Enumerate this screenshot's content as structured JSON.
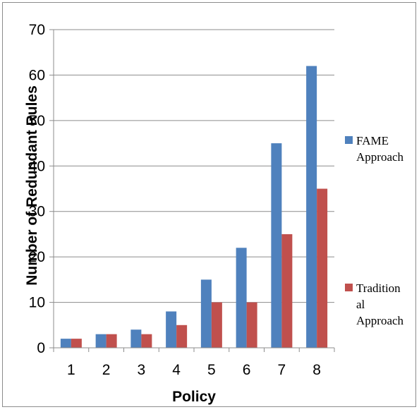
{
  "chart_data": {
    "type": "bar",
    "categories": [
      "1",
      "2",
      "3",
      "4",
      "5",
      "6",
      "7",
      "8"
    ],
    "series": [
      {
        "name": "FAME Approach",
        "color": "#4f81bd",
        "values": [
          2,
          3,
          4,
          8,
          15,
          22,
          45,
          62
        ]
      },
      {
        "name": "Traditional Approach",
        "color": "#c0504d",
        "values": [
          2,
          3,
          3,
          5,
          10,
          10,
          25,
          35
        ]
      }
    ],
    "legend_lines": [
      [
        "FAME",
        "Approach"
      ],
      [
        "Tradition",
        "al",
        "Approach"
      ]
    ],
    "title": "",
    "xlabel": "Policy",
    "ylabel": "Number of Redundant Rules",
    "ylim": [
      0,
      70
    ],
    "yticks": [
      "0",
      "10",
      "20",
      "30",
      "40",
      "50",
      "60",
      "70"
    ],
    "grid": true,
    "legend_position": "right"
  }
}
